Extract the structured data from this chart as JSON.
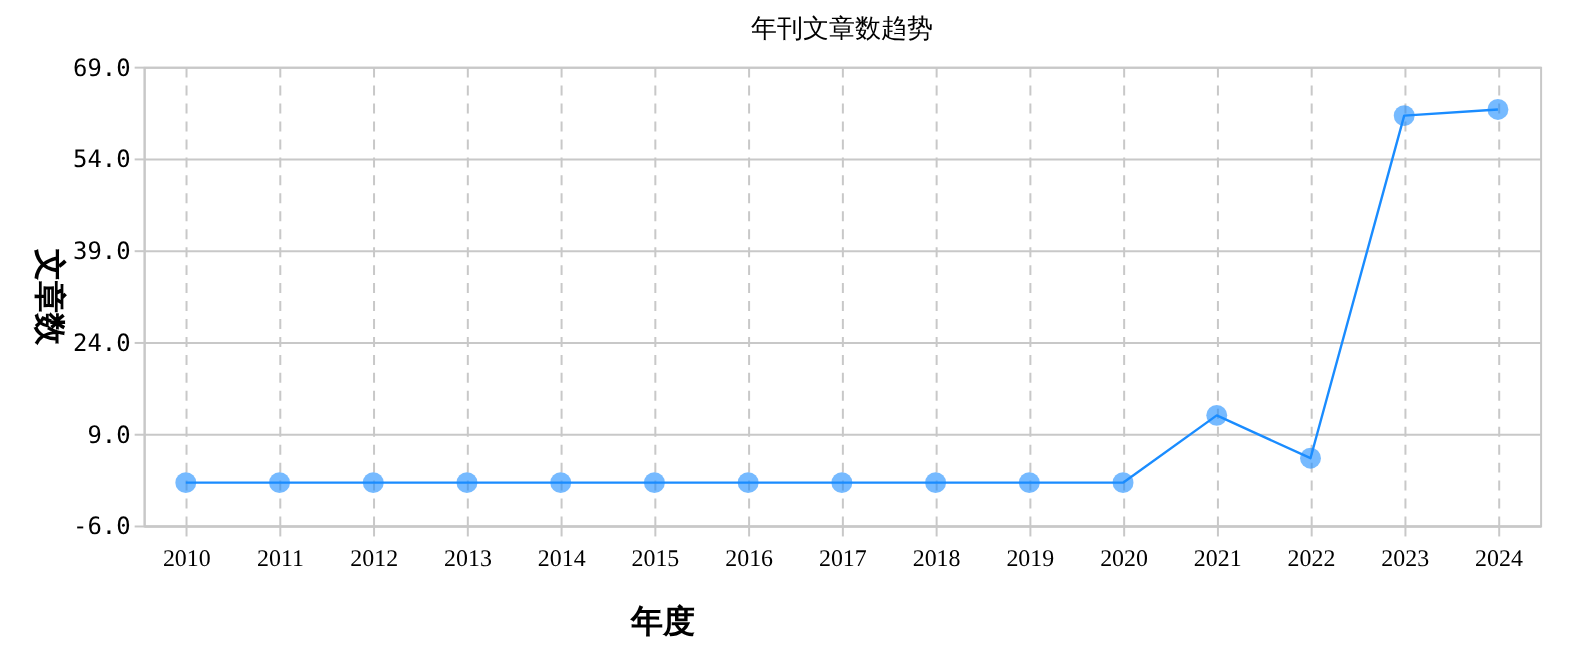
{
  "chart_data": {
    "type": "line",
    "title": "年刊文章数趋势",
    "xlabel": "年度",
    "ylabel": "文章数",
    "categories": [
      "2010",
      "2011",
      "2012",
      "2013",
      "2014",
      "2015",
      "2016",
      "2017",
      "2018",
      "2019",
      "2020",
      "2021",
      "2022",
      "2023",
      "2024"
    ],
    "series": [
      {
        "color": "#1a8cff",
        "values": [
          1,
          1,
          1,
          1,
          1,
          1,
          1,
          1,
          1,
          1,
          1,
          12,
          5,
          61,
          62
        ]
      }
    ],
    "ylim": [
      -6,
      69
    ],
    "yticks": [
      {
        "value": -6,
        "label": "-6.0"
      },
      {
        "value": 9,
        "label": "9.0"
      },
      {
        "value": 24,
        "label": "24.0"
      },
      {
        "value": 39,
        "label": "39.0"
      },
      {
        "value": 54,
        "label": "54.0"
      },
      {
        "value": 69,
        "label": "69.0"
      }
    ],
    "grid": true,
    "marker": "circle",
    "line_style": "solid"
  }
}
